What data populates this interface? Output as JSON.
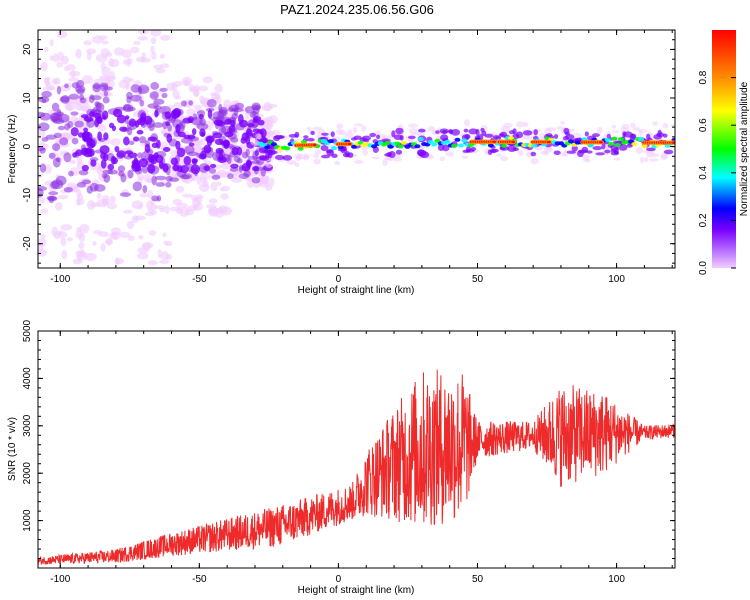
{
  "title": "PAZ1.2024.235.06.56.G06",
  "chart_data": [
    {
      "type": "heatmap",
      "xlabel": "Height of straight line (km)",
      "ylabel": "Frequency (Hz)",
      "xlim": [
        -108,
        121
      ],
      "ylim": [
        -25,
        24
      ],
      "x_ticks": [
        "-100",
        "-50",
        "0",
        "50",
        "100"
      ],
      "y_ticks": [
        "-20",
        "-10",
        "0",
        "10",
        "20"
      ],
      "grid": false,
      "colorbar": {
        "label": "Normalized spectral amplitude",
        "range": [
          0,
          1
        ],
        "ticks": [
          "0.0",
          "0.2",
          "0.4",
          "0.6",
          "0.8"
        ],
        "colors": [
          "#f2ccff",
          "#8a2be2",
          "#0000ff",
          "#00ffff",
          "#00ff00",
          "#ffff00",
          "#ff8c00",
          "#ff0000"
        ]
      },
      "ridge": {
        "description_x_from": -30,
        "center_frequency_hz": [
          {
            "x": -28,
            "f": 0.0
          },
          {
            "x": 0,
            "f": 0.5
          },
          {
            "x": 50,
            "f": 1.0
          },
          {
            "x": 121,
            "f": 0.8
          }
        ]
      }
    },
    {
      "type": "line",
      "xlabel": "Height of straight line (km)",
      "ylabel": "SNR (10 * v/v)",
      "xlim": [
        -108,
        121
      ],
      "ylim": [
        0,
        5000
      ],
      "x_ticks": [
        "-100",
        "-50",
        "0",
        "50",
        "100"
      ],
      "y_ticks": [
        "1000",
        "2000",
        "3000",
        "4000",
        "5000"
      ],
      "series": [
        {
          "color": "#ee2a2a",
          "envelope": [
            {
              "x": -108,
              "mean": 150,
              "spread": 80
            },
            {
              "x": -80,
              "mean": 250,
              "spread": 150
            },
            {
              "x": -60,
              "mean": 500,
              "spread": 250
            },
            {
              "x": -40,
              "mean": 700,
              "spread": 350
            },
            {
              "x": -20,
              "mean": 900,
              "spread": 450
            },
            {
              "x": -5,
              "mean": 1200,
              "spread": 400
            },
            {
              "x": 5,
              "mean": 1400,
              "spread": 400
            },
            {
              "x": 10,
              "mean": 1800,
              "spread": 700
            },
            {
              "x": 20,
              "mean": 2200,
              "spread": 1200
            },
            {
              "x": 30,
              "mean": 2500,
              "spread": 1700
            },
            {
              "x": 45,
              "mean": 2600,
              "spread": 1600
            },
            {
              "x": 50,
              "mean": 2700,
              "spread": 400
            },
            {
              "x": 70,
              "mean": 2800,
              "spread": 300
            },
            {
              "x": 80,
              "mean": 2800,
              "spread": 1100
            },
            {
              "x": 95,
              "mean": 2850,
              "spread": 900
            },
            {
              "x": 110,
              "mean": 2850,
              "spread": 150
            },
            {
              "x": 121,
              "mean": 2900,
              "spread": 150
            }
          ]
        }
      ]
    }
  ]
}
